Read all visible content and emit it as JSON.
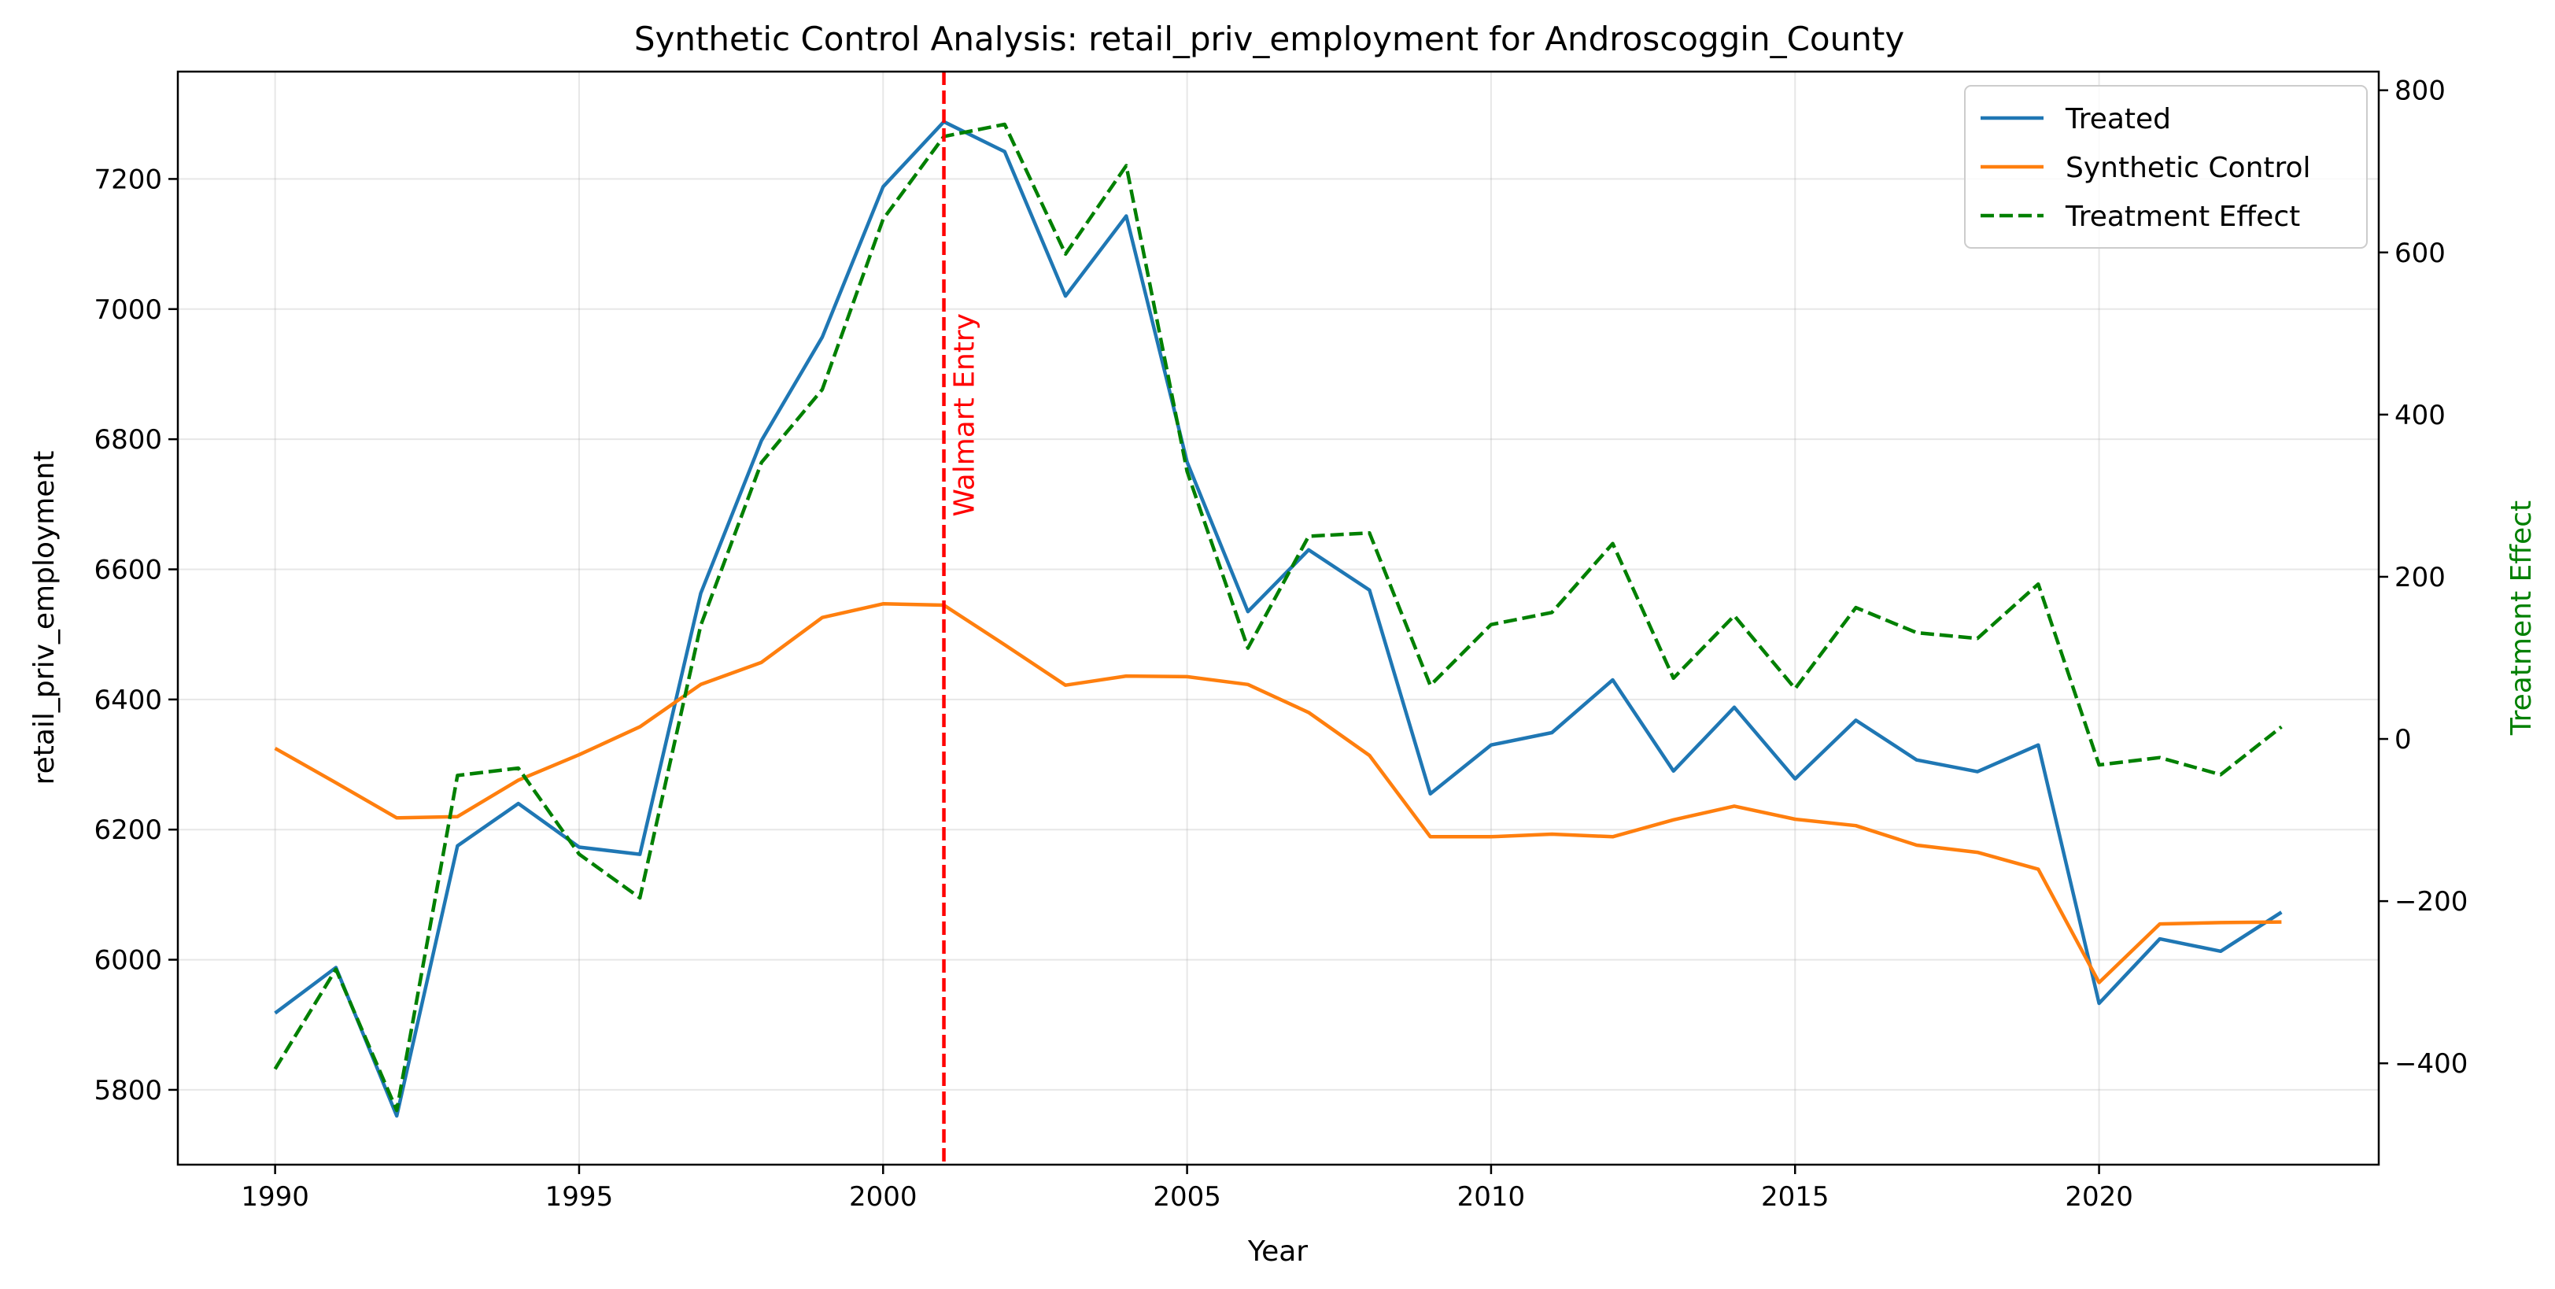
{
  "chart_data": {
    "type": "line",
    "title": "Synthetic Control Analysis: retail_priv_employment for Androscoggin_County",
    "xlabel": "Year",
    "ylabel": "retail_priv_employment",
    "y2label": "Treatment Effect",
    "xlim": [
      1988.4,
      2024.6
    ],
    "ylim": [
      5685,
      7365
    ],
    "y2lim": [
      -525,
      823
    ],
    "xticks": [
      1990,
      1995,
      2000,
      2005,
      2010,
      2015,
      2020
    ],
    "yticks": [
      5800,
      6000,
      6200,
      6400,
      6600,
      6800,
      7000,
      7200
    ],
    "y2ticks": [
      -400,
      -200,
      0,
      200,
      400,
      600,
      800
    ],
    "grid": true,
    "legend_position": "top-right",
    "x": [
      1990,
      1991,
      1992,
      1993,
      1994,
      1995,
      1996,
      1997,
      1998,
      1999,
      2000,
      2001,
      2002,
      2003,
      2004,
      2005,
      2006,
      2007,
      2008,
      2009,
      2010,
      2011,
      2012,
      2013,
      2014,
      2015,
      2016,
      2017,
      2018,
      2019,
      2020,
      2021,
      2022,
      2023
    ],
    "series": [
      {
        "name": "Treated",
        "axis": "left",
        "color": "#1f77b4",
        "style": "solid",
        "values": [
          5918,
          5988,
          5760,
          6175,
          6240,
          6173,
          6162,
          6563,
          6798,
          6957,
          7188,
          7288,
          7242,
          7020,
          7143,
          6765,
          6535,
          6630,
          6568,
          6255,
          6330,
          6349,
          6430,
          6290,
          6388,
          6278,
          6368,
          6307,
          6289,
          6330,
          5933,
          6032,
          6013,
          6073
        ]
      },
      {
        "name": "Synthetic Control",
        "axis": "left",
        "color": "#ff7f0e",
        "style": "solid",
        "values": [
          6325,
          6272,
          6218,
          6220,
          6276,
          6315,
          6358,
          6423,
          6457,
          6526,
          6547,
          6545,
          6484,
          6422,
          6436,
          6435,
          6423,
          6380,
          6314,
          6189,
          6189,
          6193,
          6189,
          6215,
          6236,
          6216,
          6206,
          6176,
          6165,
          6139,
          5965,
          6055,
          6057,
          6058
        ]
      },
      {
        "name": "Treatment Effect",
        "axis": "right",
        "color": "#008000",
        "style": "dashed",
        "values": [
          -407,
          -284,
          -458,
          -45,
          -36,
          -142,
          -196,
          140,
          341,
          431,
          641,
          743,
          758,
          598,
          707,
          330,
          112,
          250,
          254,
          66,
          141,
          156,
          241,
          75,
          152,
          62,
          162,
          131,
          124,
          191,
          -32,
          -23,
          -44,
          15
        ]
      }
    ],
    "annotation": {
      "label": "Walmart Entry",
      "x": 2001,
      "color": "#ff0000"
    }
  }
}
